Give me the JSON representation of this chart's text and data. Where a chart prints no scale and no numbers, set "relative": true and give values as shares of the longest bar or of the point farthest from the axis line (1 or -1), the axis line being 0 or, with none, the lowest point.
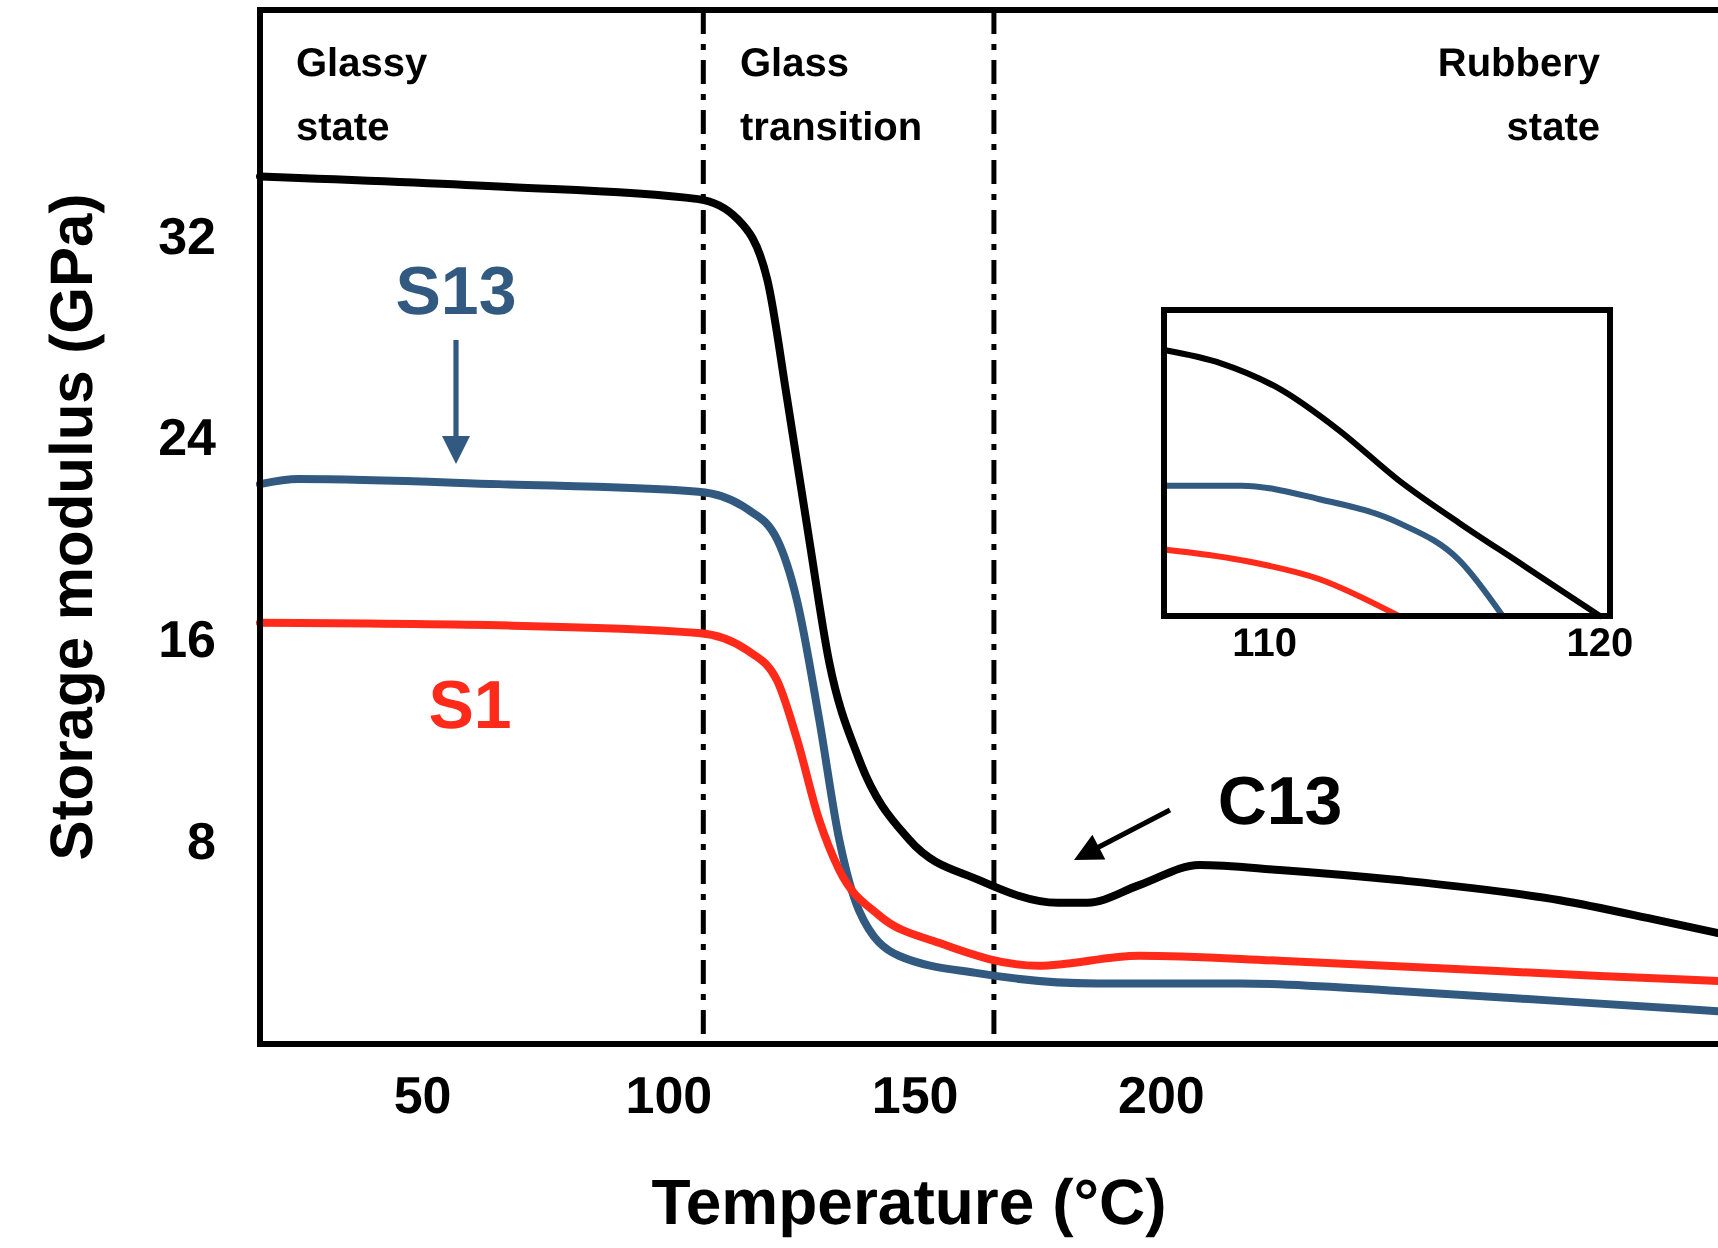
{
  "chart_data": [
    {
      "type": "line",
      "xlabel": "Temperature (°C)",
      "ylabel": "Storage modulus (GPa)",
      "xlim": [
        17,
        313
      ],
      "xticks": [
        50,
        100,
        150,
        200
      ],
      "ylim": [
        0,
        41
      ],
      "yticks": [
        8,
        16,
        24,
        32
      ],
      "grid": false,
      "marker": "none",
      "line_style": "solid",
      "annotations": [
        "Glassy state",
        "Glass transition",
        "Rubbery state"
      ],
      "ref_lines": [
        {
          "axis": "x",
          "value": 107,
          "label": null,
          "line_style": "dashed"
        },
        {
          "axis": "x",
          "value": 166,
          "label": null,
          "line_style": "dashed"
        }
      ],
      "series": [
        {
          "name": "C13",
          "color": "#000000",
          "x": [
            17,
            65.4,
            106,
            114,
            120,
            124,
            128.5,
            132.5,
            138.6,
            148.8,
            163,
            179,
            185,
            195.5,
            207.7,
            224,
            248,
            280.9,
            301,
            313
          ],
          "values": [
            34.4,
            34.0,
            33.5,
            32.7,
            30.3,
            25.6,
            20,
            15.2,
            11.3,
            8.1,
            6.5,
            5.6,
            5.6,
            6.3,
            7.1,
            6.9,
            6.5,
            5.7,
            4.9,
            4.4
          ]
        },
        {
          "name": "S13",
          "color": "#325a80",
          "x": [
            17,
            24.8,
            65.4,
            106,
            116,
            122,
            126,
            130.5,
            134.6,
            138.6,
            146.7,
            163,
            187,
            216,
            248,
            281,
            313
          ],
          "values": [
            22.2,
            22.4,
            22.2,
            21.9,
            21.2,
            20,
            17.6,
            12.9,
            8.1,
            5.3,
            3.5,
            2.8,
            2.4,
            2.4,
            2.1,
            1.7,
            1.3
          ]
        },
        {
          "name": "S1",
          "color": "#ff2a1a",
          "x": [
            17,
            65.4,
            106,
            116,
            122,
            126,
            130.5,
            134.6,
            142.7,
            155,
            175,
            195.5,
            224,
            256.5,
            289,
            313
          ],
          "values": [
            16.7,
            16.6,
            16.3,
            15.6,
            14.4,
            12.1,
            8.9,
            6.9,
            5.1,
            4.0,
            3.1,
            3.5,
            3.3,
            3.0,
            2.7,
            2.5
          ]
        }
      ]
    },
    {
      "type": "line",
      "relative": true,
      "xlim": [
        107,
        120.3
      ],
      "xticks": [
        110,
        120
      ],
      "tick_labels": "x",
      "marker": "none",
      "line_style": "solid",
      "series": [
        {
          "color": "#000000",
          "x": [
            107,
            108.7,
            110.5,
            112.2,
            114,
            115.8,
            117.6,
            120
          ],
          "values": [
            1.0,
            0.95,
            0.85,
            0.7,
            0.51,
            0.35,
            0.2,
            0
          ]
        },
        {
          "color": "#325a80",
          "x": [
            107,
            109.3,
            111.6,
            114,
            115.8,
            117.1
          ],
          "values": [
            0.49,
            0.49,
            0.44,
            0.35,
            0.21,
            0
          ]
        },
        {
          "color": "#ff2a1a",
          "x": [
            107,
            109.3,
            111.6,
            114
          ],
          "values": [
            0.25,
            0.21,
            0.14,
            0
          ]
        }
      ]
    }
  ]
}
